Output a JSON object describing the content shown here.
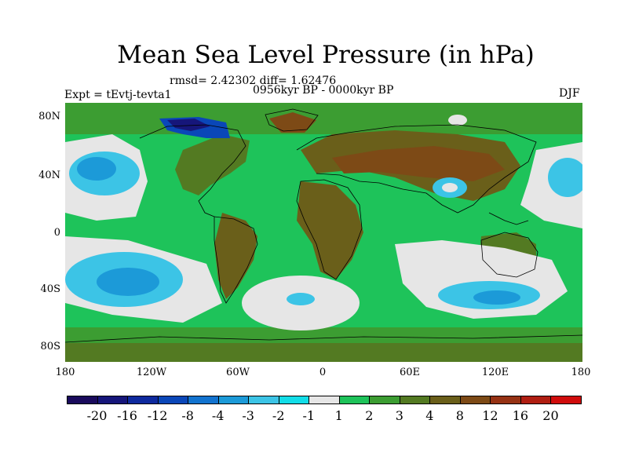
{
  "title": "Mean Sea Level Pressure (in hPa)",
  "stats": "rmsd= 2.42302 diff= 1.62476",
  "expt": "Expt = tEvtj-tevta1",
  "period": "0956kyr BP - 0000kyr BP",
  "season": "DJF",
  "lat_labels": [
    "80N",
    "40N",
    "0",
    "40S",
    "80S"
  ],
  "lon_labels": [
    "180",
    "120W",
    "60W",
    "0",
    "60E",
    "120E",
    "180"
  ],
  "colorbar": {
    "colors": [
      "#1a0a5c",
      "#16167a",
      "#0e2a9e",
      "#0a47b8",
      "#1273cf",
      "#1c9ad8",
      "#3cc4e6",
      "#12dde8",
      "#e6e6e6",
      "#1ec35a",
      "#3c9d32",
      "#537a22",
      "#6a5f1a",
      "#7d4a16",
      "#963214",
      "#b01e12",
      "#d00c0c"
    ],
    "labels": [
      "-20",
      "-16",
      "-12",
      "-8",
      "-4",
      "-3",
      "-2",
      "-1",
      "1",
      "2",
      "3",
      "4",
      "8",
      "12",
      "16",
      "20"
    ]
  }
}
